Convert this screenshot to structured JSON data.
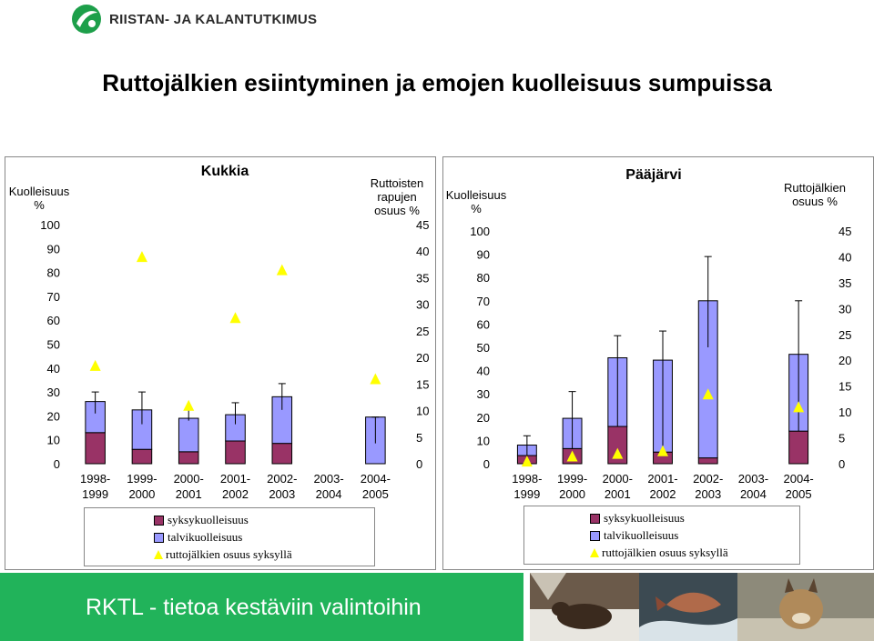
{
  "header": {
    "logo_text": "RIISTAN- JA KALANTUTKIMUS",
    "title": "Ruttojälkien esiintyminen ja emojen kuolleisuus sumpuissa"
  },
  "colors": {
    "syksy": "#993366",
    "talvi": "#9999ff",
    "triangle": "#ffff00",
    "footer_green": "#21b35a"
  },
  "chart_data": [
    {
      "type": "bar",
      "title": "Kukkia",
      "ylabel": "Kuolleisuus %",
      "y2label": "Ruttoisten rapujen osuus %",
      "ylim": [
        0,
        100
      ],
      "y2lim": [
        0,
        45
      ],
      "categories": [
        "1998-1999",
        "1999-2000",
        "2000-2001",
        "2001-2002",
        "2002-2003",
        "2003-2004",
        "2004-2005"
      ],
      "series": [
        {
          "name": "syksykuolleisuus",
          "values": [
            13,
            6,
            5,
            9.5,
            8.5,
            null,
            0
          ]
        },
        {
          "name": "talvikuolleisuus",
          "values": [
            13,
            16.5,
            14,
            11,
            19.5,
            null,
            19.5
          ]
        },
        {
          "name": "ruttojälkien osuus syksyllä",
          "axis": "right",
          "values": [
            18.5,
            39,
            11,
            27.5,
            36.5,
            null,
            16
          ]
        }
      ],
      "error_bar_tops": [
        30,
        30,
        22.5,
        25.5,
        33.5,
        null,
        19.5
      ],
      "error_bar_bottoms": [
        21,
        16.5,
        18,
        16.5,
        22.5,
        null,
        8.5
      ],
      "legend": [
        "syksykuolleisuus",
        "talvikuolleisuus",
        "ruttojälkien osuus syksyllä"
      ]
    },
    {
      "type": "bar",
      "title": "Pääjärvi",
      "ylabel": "Kuolleisuus %",
      "y2label": "Ruttojälkien osuus %",
      "ylim": [
        0,
        100
      ],
      "y2lim": [
        0,
        45
      ],
      "categories": [
        "1998-1999",
        "1999-2000",
        "2000-2001",
        "2001-2002",
        "2002-2003",
        "2003-2004",
        "2004-2005"
      ],
      "series": [
        {
          "name": "syksykuolleisuus",
          "values": [
            3.5,
            6.5,
            16,
            5,
            2.5,
            null,
            14
          ]
        },
        {
          "name": "talvikuolleisuus",
          "values": [
            4.5,
            13,
            29.5,
            39.5,
            67.5,
            null,
            33
          ]
        },
        {
          "name": "ruttojälkien osuus syksyllä",
          "axis": "right",
          "values": [
            0.5,
            1.5,
            2,
            2.5,
            13.5,
            null,
            11
          ]
        }
      ],
      "error_bar_tops": [
        12,
        31,
        55,
        57,
        89,
        null,
        70
      ],
      "error_bar_bottoms": [
        3.5,
        6.5,
        16,
        5,
        50,
        null,
        14
      ],
      "legend": [
        "syksykuolleisuus",
        "talvikuolleisuus",
        "ruttojälkien osuus syksyllä"
      ]
    }
  ],
  "footer": {
    "text": "RKTL - tietoa kestäviin valintoihin",
    "photos": [
      "wolverine-photo",
      "salmon-photo",
      "lynx-photo"
    ]
  }
}
